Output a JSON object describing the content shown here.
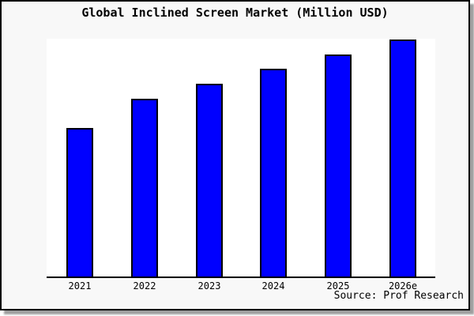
{
  "window": {
    "title": "Global Inclined Screen Market (Million USD)",
    "source_credit": "Source: Prof Research"
  },
  "colors": {
    "bar_fill": "#0000ff",
    "bar_border": "#000000",
    "frame_background": "#f8f8f8",
    "plot_background": "#ffffff",
    "axis_line": "#000000",
    "text": "#000000"
  },
  "chart_data": {
    "type": "bar",
    "title": "Global Inclined Screen Market (Million USD)",
    "categories": [
      "2021",
      "2022",
      "2023",
      "2024",
      "2025",
      "2026e"
    ],
    "values": [
      188,
      225,
      244,
      263,
      281,
      300
    ],
    "values_note": "No y-axis or data labels are shown in the image; values are relative bar heights estimated from pixels, scaled so 2026e = 300",
    "xlabel": "",
    "ylabel": "",
    "ylim": [
      0,
      301
    ],
    "grid": false,
    "legend": false,
    "y_axis_ticks": [],
    "source": "Source: Prof Research"
  }
}
